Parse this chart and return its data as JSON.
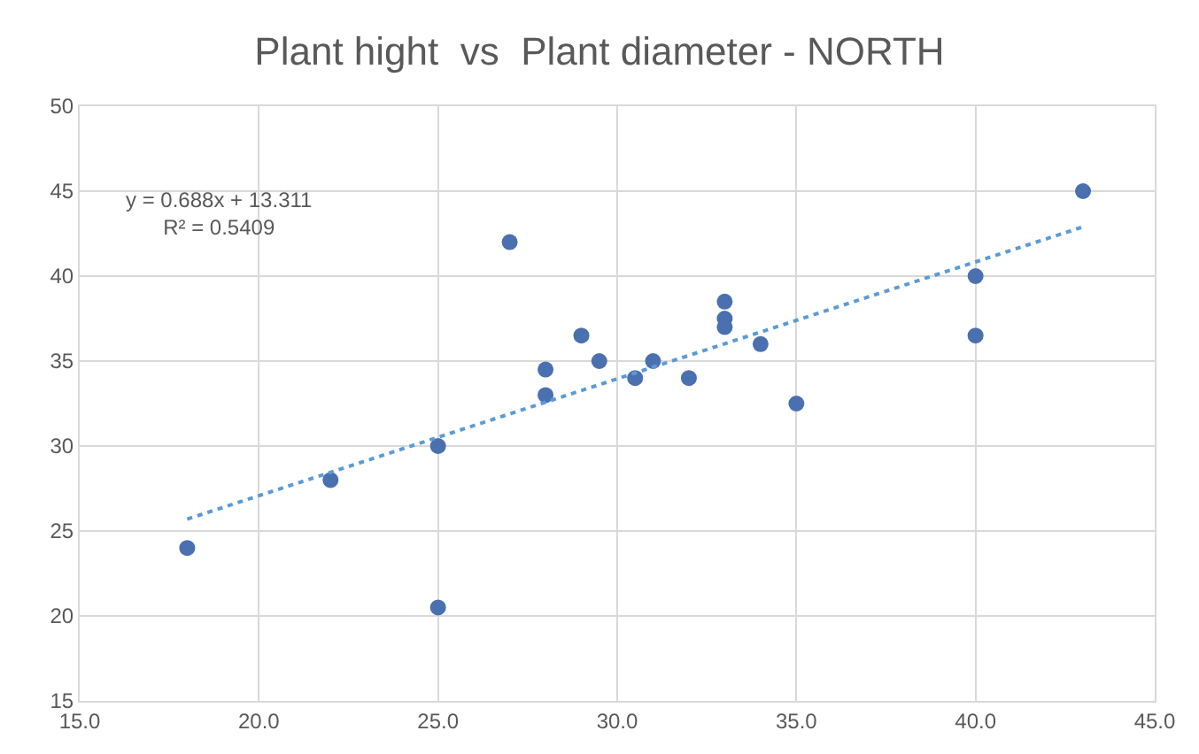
{
  "chart_data": {
    "type": "scatter",
    "title": "Plant hight  vs  Plant diameter - NORTH",
    "series": [
      {
        "color": "#4a70b0",
        "marker": "circle",
        "x": [
          18,
          22,
          25,
          25,
          27,
          28,
          28,
          29,
          29.5,
          30.5,
          31,
          32,
          33,
          33,
          33,
          34,
          35,
          40,
          40,
          43
        ],
        "values": [
          24,
          28,
          30,
          20.5,
          42,
          34.5,
          33,
          36.5,
          35,
          34,
          35,
          34,
          38.5,
          37.5,
          37,
          36,
          32.5,
          40,
          36.5,
          45
        ]
      },
      {
        "type": "line",
        "color": "#5b9bd5",
        "line_style": "dotted",
        "x": [
          18,
          43
        ],
        "values": [
          25.7,
          42.9
        ]
      }
    ],
    "annotations": [
      "y = 0.688x + 13.311\nR² = 0.5409"
    ],
    "xlim": [
      15,
      45
    ],
    "xticks": [
      {
        "value": 15,
        "label": "15.0"
      },
      {
        "value": 20,
        "label": "20.0"
      },
      {
        "value": 25,
        "label": "25.0"
      },
      {
        "value": 30,
        "label": "30.0"
      },
      {
        "value": 35,
        "label": "35.0"
      },
      {
        "value": 40,
        "label": "40.0"
      },
      {
        "value": 45,
        "label": "45.0"
      }
    ],
    "ylim": [
      15,
      50
    ],
    "yticks": [
      15,
      20,
      25,
      30,
      35,
      40,
      45,
      50
    ],
    "grid": true
  }
}
